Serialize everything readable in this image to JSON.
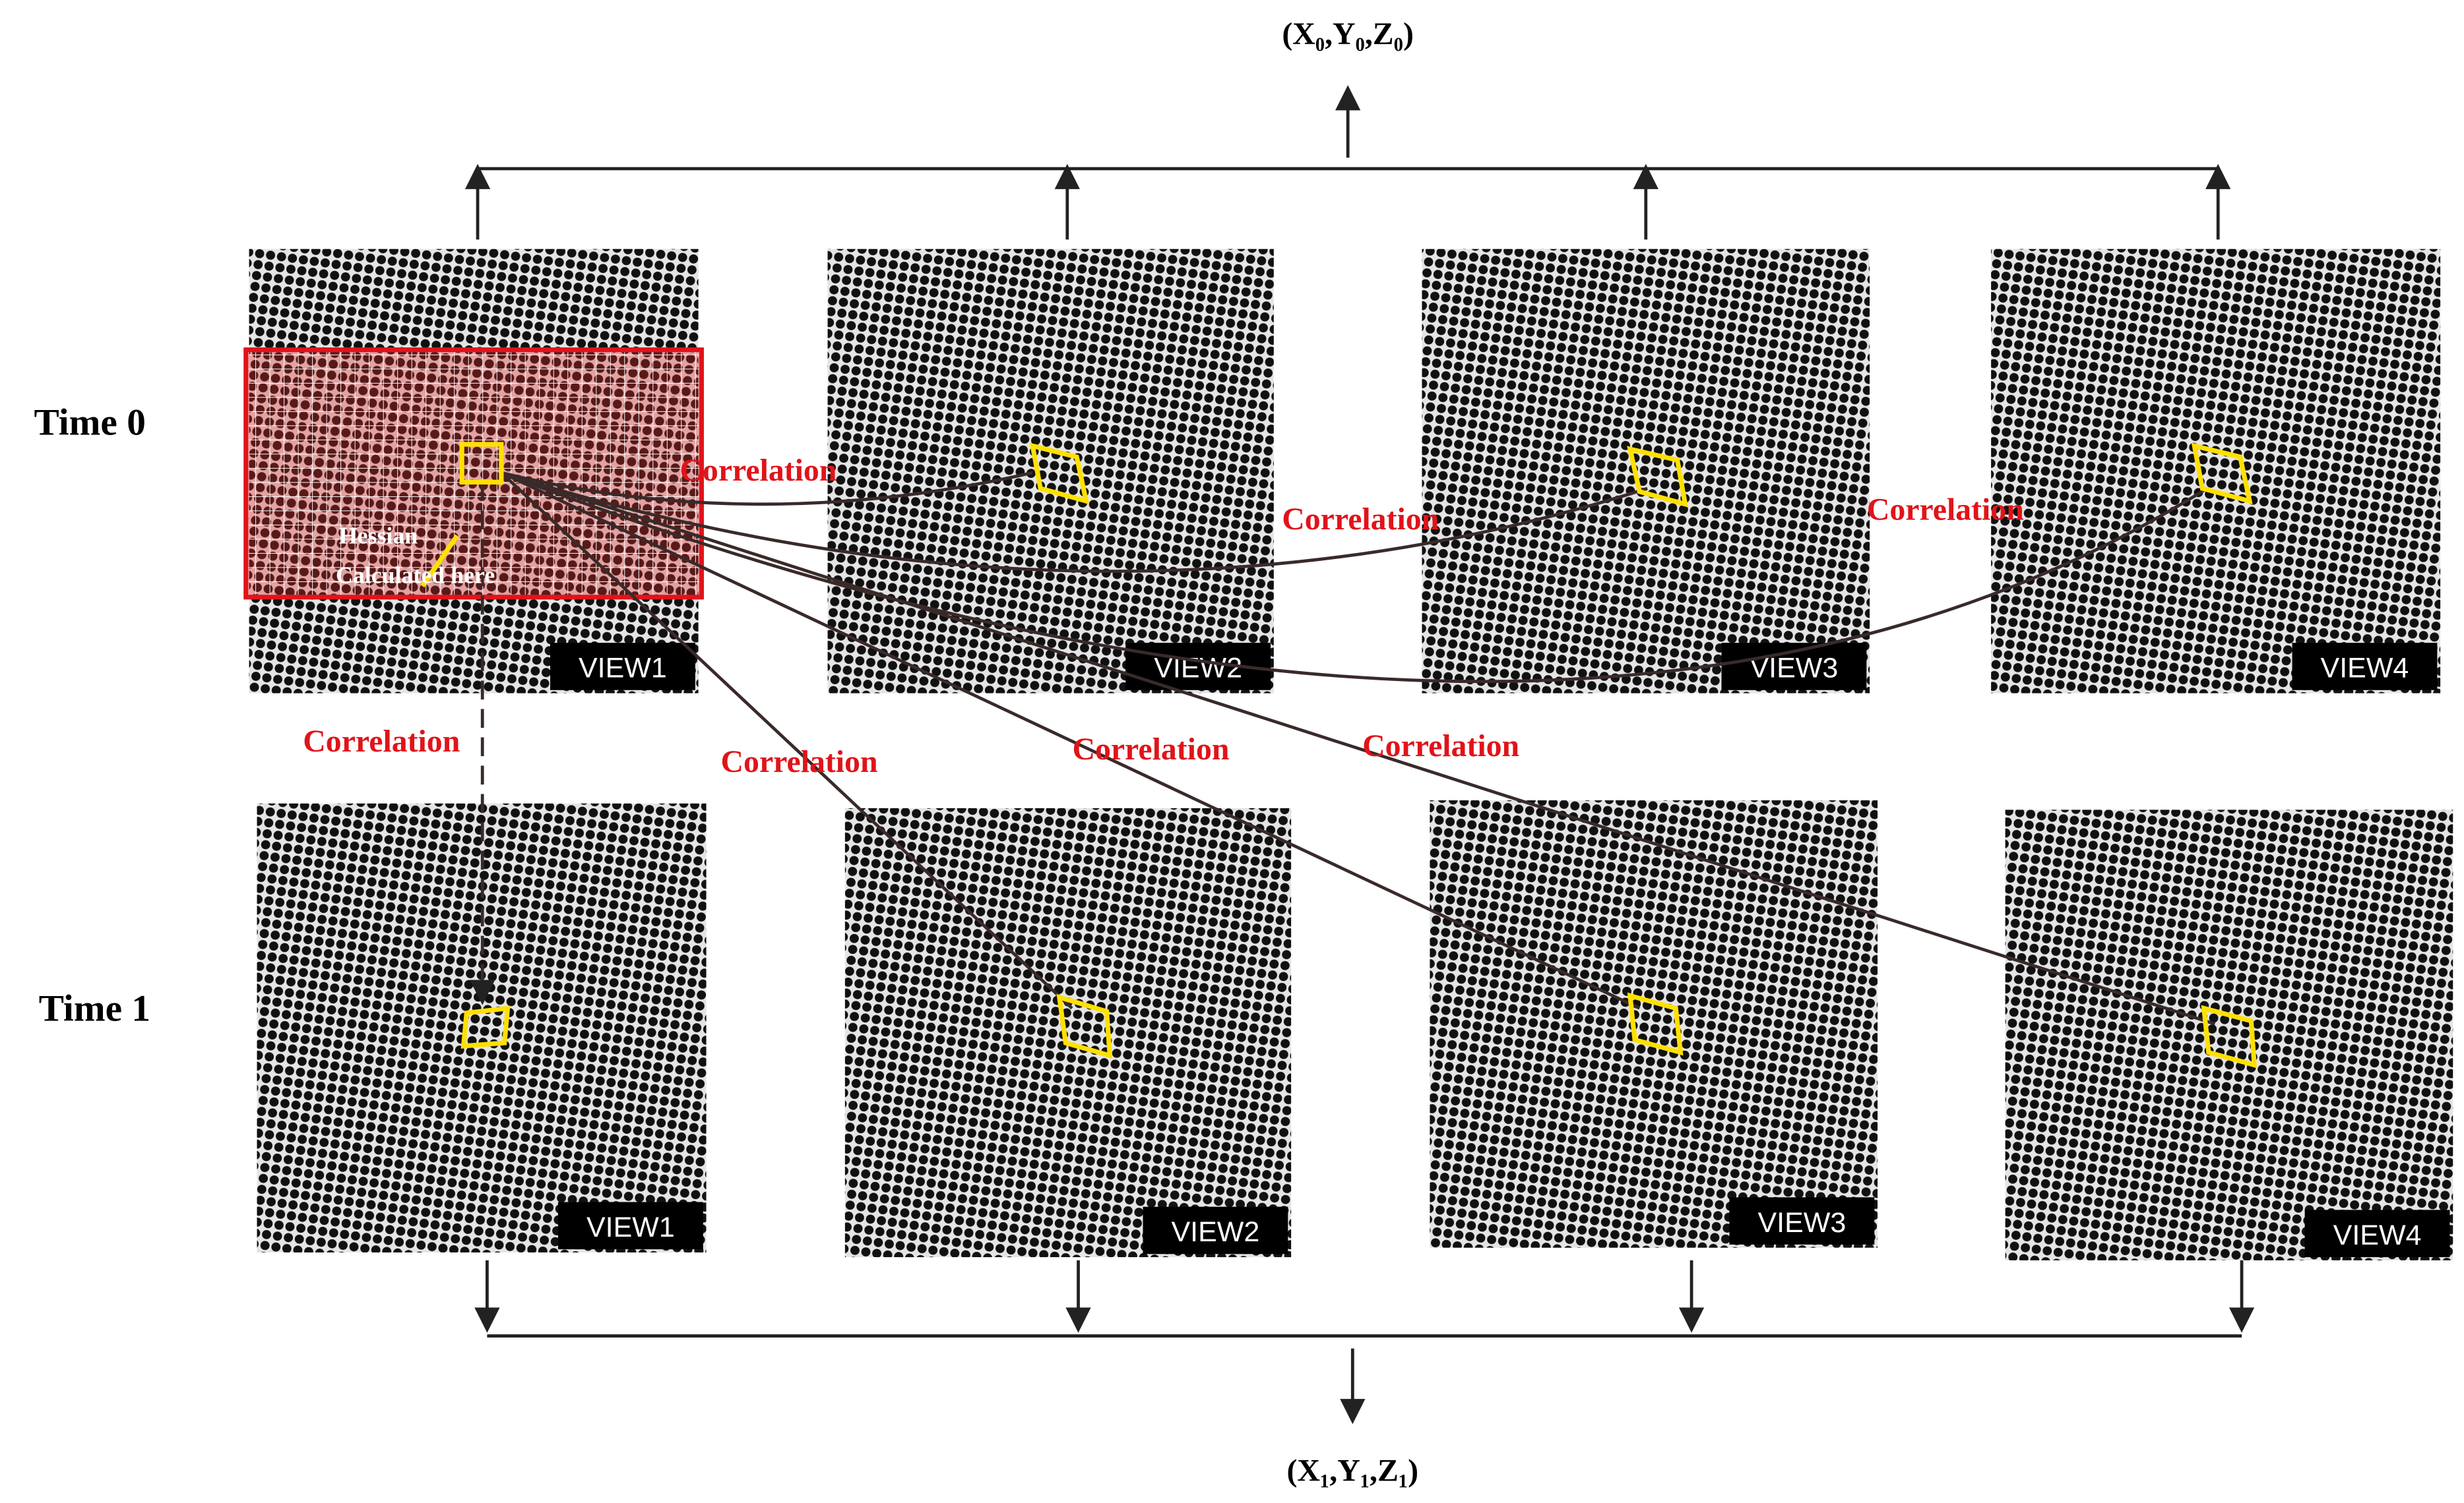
{
  "header": {
    "top_output": "(X₀,Y₀,Z₀)",
    "bottom_output": "(X₁,Y₁,Z₁)"
  },
  "rows": [
    {
      "label": "Time 0",
      "views": [
        "VIEW1",
        "VIEW2",
        "VIEW3",
        "VIEW4"
      ]
    },
    {
      "label": "Time 1",
      "views": [
        "VIEW1",
        "VIEW2",
        "VIEW3",
        "VIEW4"
      ]
    }
  ],
  "correlation_labels": [
    "Correlation",
    "Correlation",
    "Correlation",
    "Correlation",
    "Correlation",
    "Correlation",
    "Correlation"
  ],
  "annotation": [
    "Hessian",
    "Calculated here"
  ]
}
